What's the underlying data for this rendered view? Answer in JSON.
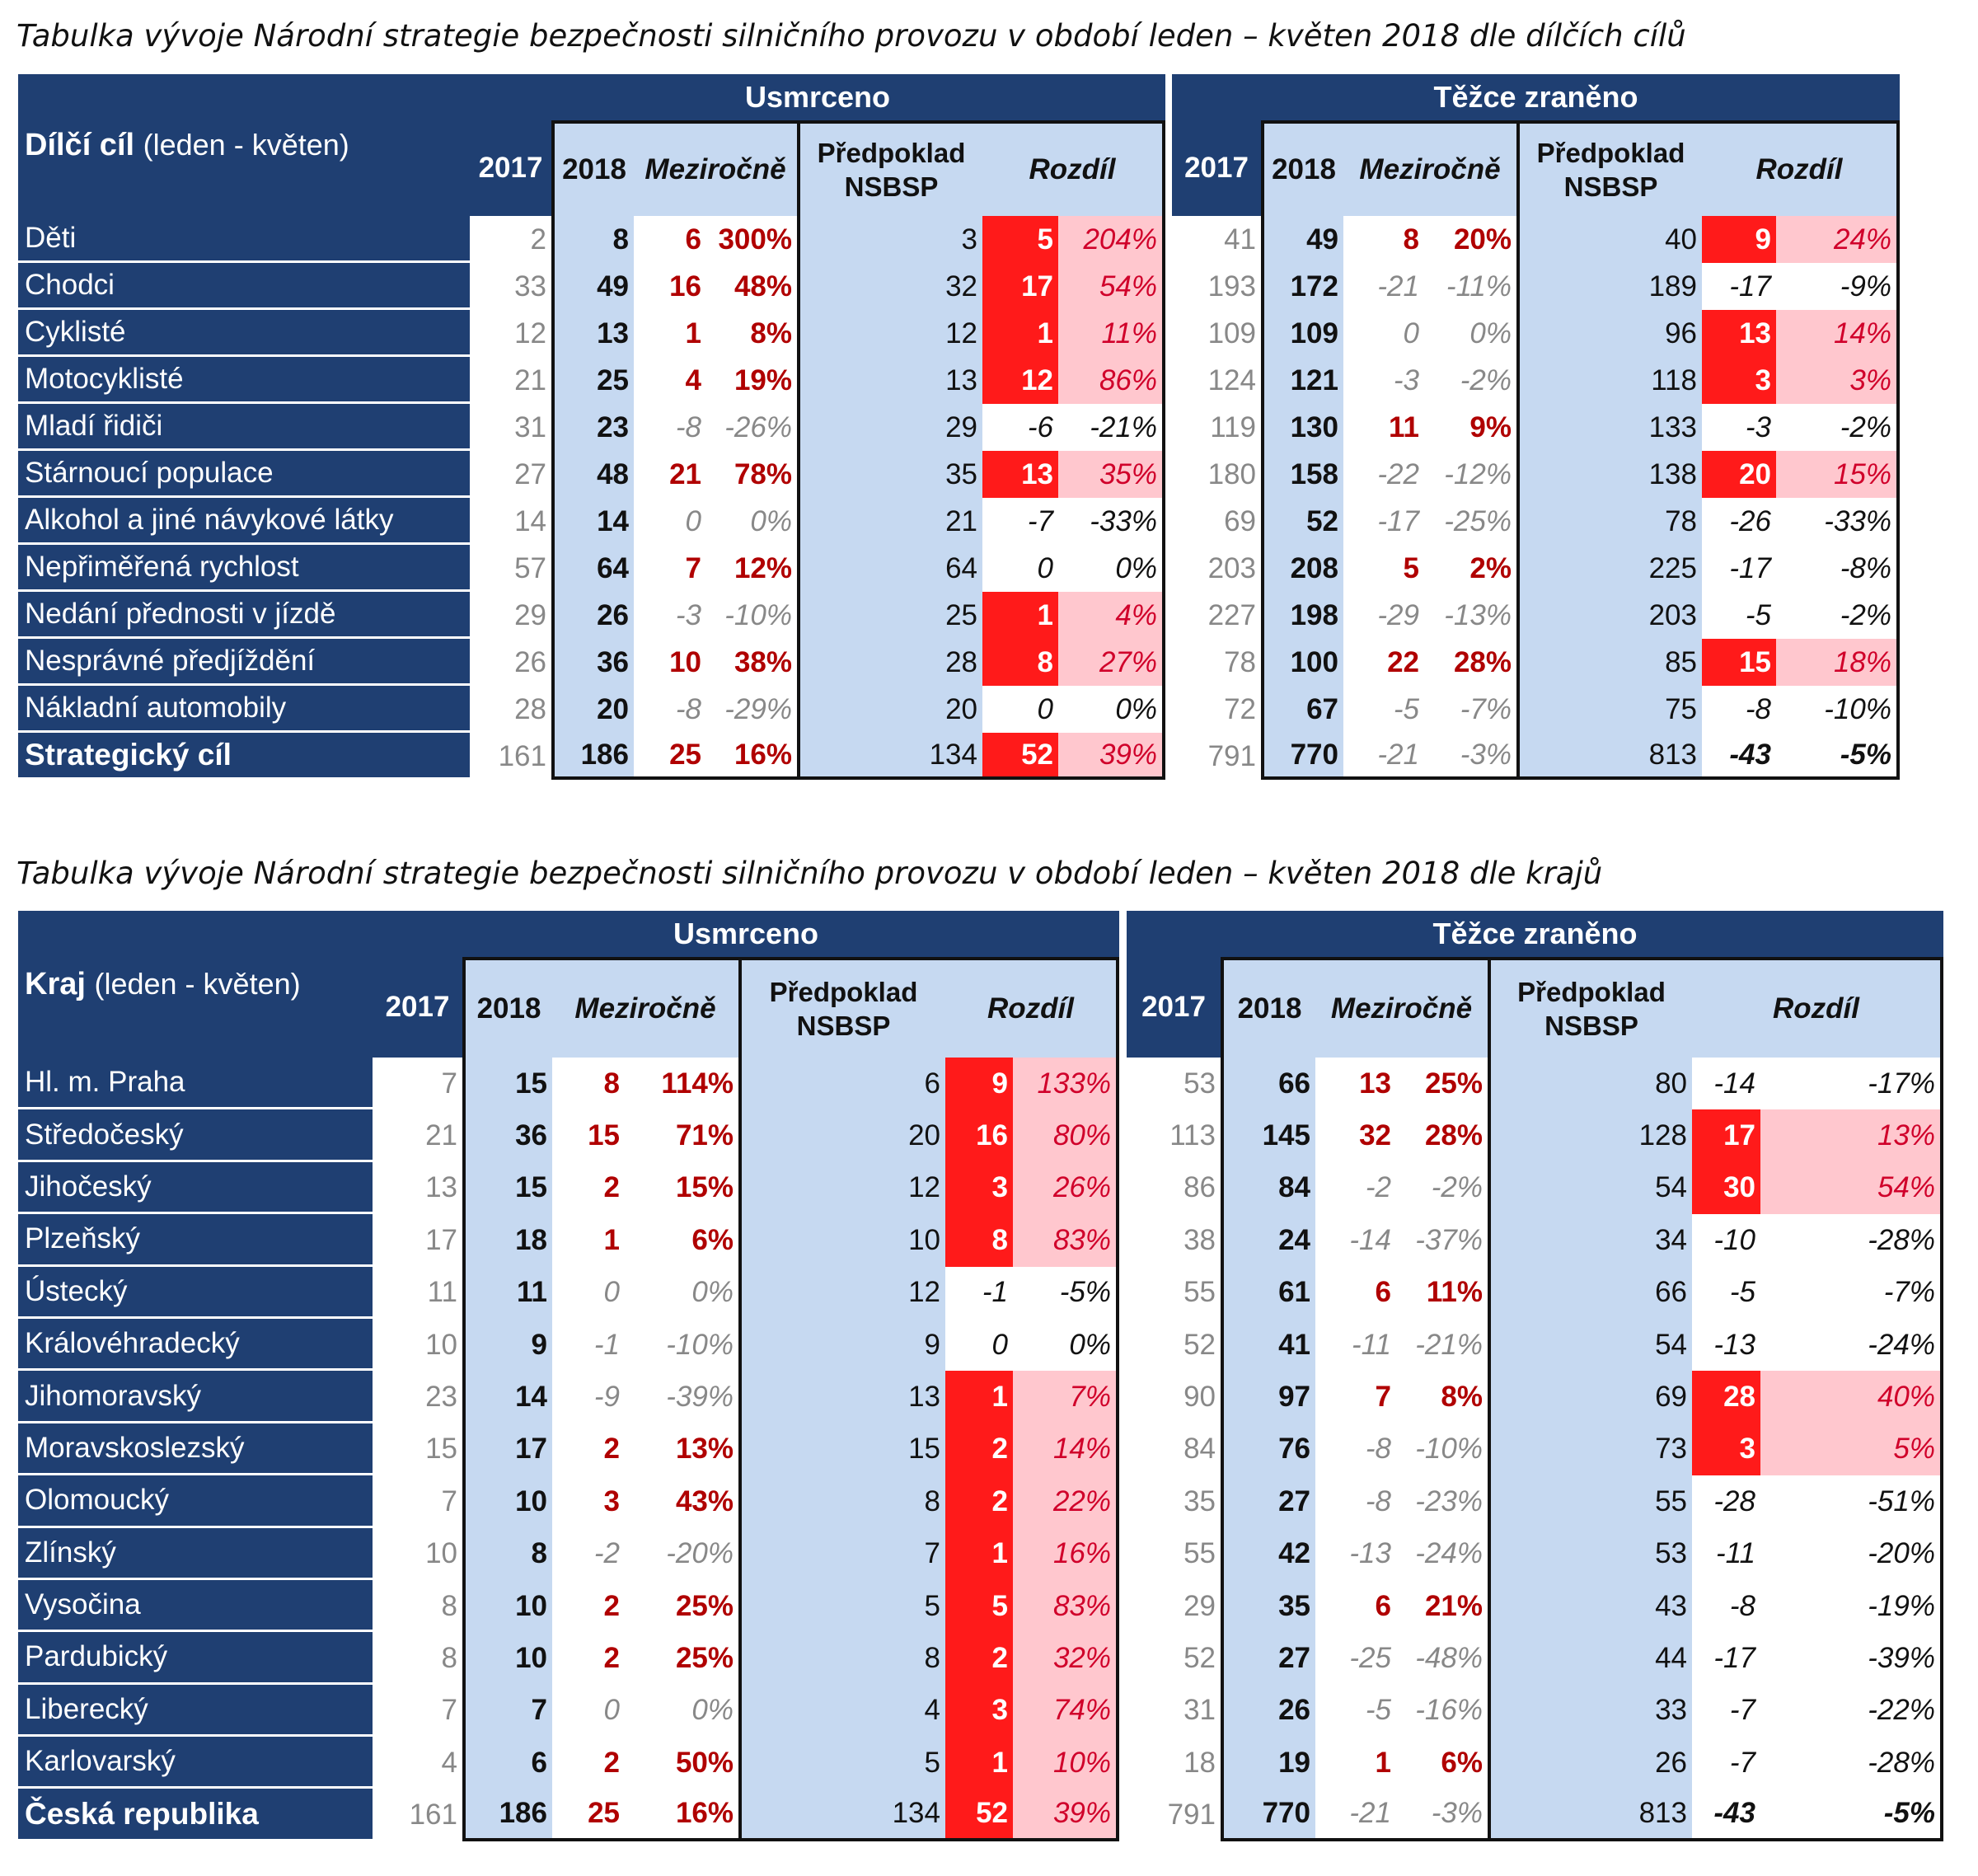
{
  "captions": {
    "goals": "Tabulka vývoje Národní strategie bezpečnosti silničního provozu v období leden – květen 2018 dle dílčích cílů",
    "regions": "Tabulka vývoje Národní strategie bezpečnosti silničního provozu v období leden – květen 2018 dle krajů"
  },
  "headers": {
    "usmrceno": "Usmrceno",
    "tezce": "Těžce zraněno",
    "y2017": "2017",
    "y2018": "2018",
    "mezirocne": "Meziročně",
    "predpoklad": "Předpoklad",
    "nsbsp": "NSBSP",
    "rozdil": "Rozdíl"
  },
  "goals": {
    "label_bold": "Dílčí cíl",
    "label_light": "(leden - květen)",
    "rows": [
      {
        "name": "Děti",
        "u": [
          "2",
          "8",
          "6",
          "300%",
          "3",
          "5",
          "204%"
        ],
        "t": [
          "41",
          "49",
          "8",
          "20%",
          "40",
          "9",
          "24%"
        ]
      },
      {
        "name": "Chodci",
        "u": [
          "33",
          "49",
          "16",
          "48%",
          "32",
          "17",
          "54%"
        ],
        "t": [
          "193",
          "172",
          "-21",
          "-11%",
          "189",
          "-17",
          "-9%"
        ]
      },
      {
        "name": "Cyklisté",
        "u": [
          "12",
          "13",
          "1",
          "8%",
          "12",
          "1",
          "11%"
        ],
        "t": [
          "109",
          "109",
          "0",
          "0%",
          "96",
          "13",
          "14%"
        ]
      },
      {
        "name": "Motocyklisté",
        "u": [
          "21",
          "25",
          "4",
          "19%",
          "13",
          "12",
          "86%"
        ],
        "t": [
          "124",
          "121",
          "-3",
          "-2%",
          "118",
          "3",
          "3%"
        ]
      },
      {
        "name": "Mladí řidiči",
        "u": [
          "31",
          "23",
          "-8",
          "-26%",
          "29",
          "-6",
          "-21%"
        ],
        "t": [
          "119",
          "130",
          "11",
          "9%",
          "133",
          "-3",
          "-2%"
        ]
      },
      {
        "name": "Stárnoucí populace",
        "u": [
          "27",
          "48",
          "21",
          "78%",
          "35",
          "13",
          "35%"
        ],
        "t": [
          "180",
          "158",
          "-22",
          "-12%",
          "138",
          "20",
          "15%"
        ]
      },
      {
        "name": "Alkohol a jiné návykové látky",
        "u": [
          "14",
          "14",
          "0",
          "0%",
          "21",
          "-7",
          "-33%"
        ],
        "t": [
          "69",
          "52",
          "-17",
          "-25%",
          "78",
          "-26",
          "-33%"
        ]
      },
      {
        "name": "Nepřiměřená rychlost",
        "u": [
          "57",
          "64",
          "7",
          "12%",
          "64",
          "0",
          "0%"
        ],
        "t": [
          "203",
          "208",
          "5",
          "2%",
          "225",
          "-17",
          "-8%"
        ]
      },
      {
        "name": "Nedání přednosti v jízdě",
        "u": [
          "29",
          "26",
          "-3",
          "-10%",
          "25",
          "1",
          "4%"
        ],
        "t": [
          "227",
          "198",
          "-29",
          "-13%",
          "203",
          "-5",
          "-2%"
        ]
      },
      {
        "name": "Nesprávné předjíždění",
        "u": [
          "26",
          "36",
          "10",
          "38%",
          "28",
          "8",
          "27%"
        ],
        "t": [
          "78",
          "100",
          "22",
          "28%",
          "85",
          "15",
          "18%"
        ]
      },
      {
        "name": "Nákladní automobily",
        "u": [
          "28",
          "20",
          "-8",
          "-29%",
          "20",
          "0",
          "0%"
        ],
        "t": [
          "72",
          "67",
          "-5",
          "-7%",
          "75",
          "-8",
          "-10%"
        ]
      },
      {
        "name": "Strategický cíl",
        "total": true,
        "u": [
          "161",
          "186",
          "25",
          "16%",
          "134",
          "52",
          "39%"
        ],
        "t": [
          "791",
          "770",
          "-21",
          "-3%",
          "813",
          "-43",
          "-5%"
        ]
      }
    ]
  },
  "regions": {
    "label_bold": "Kraj",
    "label_light": "(leden - květen)",
    "rows": [
      {
        "name": "Hl. m. Praha",
        "u": [
          "7",
          "15",
          "8",
          "114%",
          "6",
          "9",
          "133%"
        ],
        "t": [
          "53",
          "66",
          "13",
          "25%",
          "80",
          "-14",
          "-17%"
        ]
      },
      {
        "name": "Středočeský",
        "u": [
          "21",
          "36",
          "15",
          "71%",
          "20",
          "16",
          "80%"
        ],
        "t": [
          "113",
          "145",
          "32",
          "28%",
          "128",
          "17",
          "13%"
        ]
      },
      {
        "name": "Jihočeský",
        "u": [
          "13",
          "15",
          "2",
          "15%",
          "12",
          "3",
          "26%"
        ],
        "t": [
          "86",
          "84",
          "-2",
          "-2%",
          "54",
          "30",
          "54%"
        ]
      },
      {
        "name": "Plzeňský",
        "u": [
          "17",
          "18",
          "1",
          "6%",
          "10",
          "8",
          "83%"
        ],
        "t": [
          "38",
          "24",
          "-14",
          "-37%",
          "34",
          "-10",
          "-28%"
        ]
      },
      {
        "name": "Ústecký",
        "u": [
          "11",
          "11",
          "0",
          "0%",
          "12",
          "-1",
          "-5%"
        ],
        "t": [
          "55",
          "61",
          "6",
          "11%",
          "66",
          "-5",
          "-7%"
        ]
      },
      {
        "name": "Královéhradecký",
        "u": [
          "10",
          "9",
          "-1",
          "-10%",
          "9",
          "0",
          "0%"
        ],
        "t": [
          "52",
          "41",
          "-11",
          "-21%",
          "54",
          "-13",
          "-24%"
        ]
      },
      {
        "name": "Jihomoravský",
        "u": [
          "23",
          "14",
          "-9",
          "-39%",
          "13",
          "1",
          "7%"
        ],
        "t": [
          "90",
          "97",
          "7",
          "8%",
          "69",
          "28",
          "40%"
        ]
      },
      {
        "name": "Moravskoslezský",
        "u": [
          "15",
          "17",
          "2",
          "13%",
          "15",
          "2",
          "14%"
        ],
        "t": [
          "84",
          "76",
          "-8",
          "-10%",
          "73",
          "3",
          "5%"
        ]
      },
      {
        "name": "Olomoucký",
        "u": [
          "7",
          "10",
          "3",
          "43%",
          "8",
          "2",
          "22%"
        ],
        "t": [
          "35",
          "27",
          "-8",
          "-23%",
          "55",
          "-28",
          "-51%"
        ]
      },
      {
        "name": "Zlínský",
        "u": [
          "10",
          "8",
          "-2",
          "-20%",
          "7",
          "1",
          "16%"
        ],
        "t": [
          "55",
          "42",
          "-13",
          "-24%",
          "53",
          "-11",
          "-20%"
        ]
      },
      {
        "name": "Vysočina",
        "u": [
          "8",
          "10",
          "2",
          "25%",
          "5",
          "5",
          "83%"
        ],
        "t": [
          "29",
          "35",
          "6",
          "21%",
          "43",
          "-8",
          "-19%"
        ]
      },
      {
        "name": "Pardubický",
        "u": [
          "8",
          "10",
          "2",
          "25%",
          "8",
          "2",
          "32%"
        ],
        "t": [
          "52",
          "27",
          "-25",
          "-48%",
          "44",
          "-17",
          "-39%"
        ]
      },
      {
        "name": "Liberecký",
        "u": [
          "7",
          "7",
          "0",
          "0%",
          "4",
          "3",
          "74%"
        ],
        "t": [
          "31",
          "26",
          "-5",
          "-16%",
          "33",
          "-7",
          "-22%"
        ]
      },
      {
        "name": "Karlovarský",
        "u": [
          "4",
          "6",
          "2",
          "50%",
          "5",
          "1",
          "10%"
        ],
        "t": [
          "18",
          "19",
          "1",
          "6%",
          "26",
          "-7",
          "-28%"
        ]
      },
      {
        "name": "Česká republika",
        "total": true,
        "u": [
          "161",
          "186",
          "25",
          "16%",
          "134",
          "52",
          "39%"
        ],
        "t": [
          "791",
          "770",
          "-21",
          "-3%",
          "813",
          "-43",
          "-5%"
        ]
      }
    ]
  },
  "colors": {
    "header_blue": "#1f3f72",
    "light_blue": "#c6d9f1",
    "red_fill": "#ff1a1a",
    "pink_fill": "#ffc7ce",
    "dark_red_text": "#b00000",
    "grey_text": "#888888"
  }
}
